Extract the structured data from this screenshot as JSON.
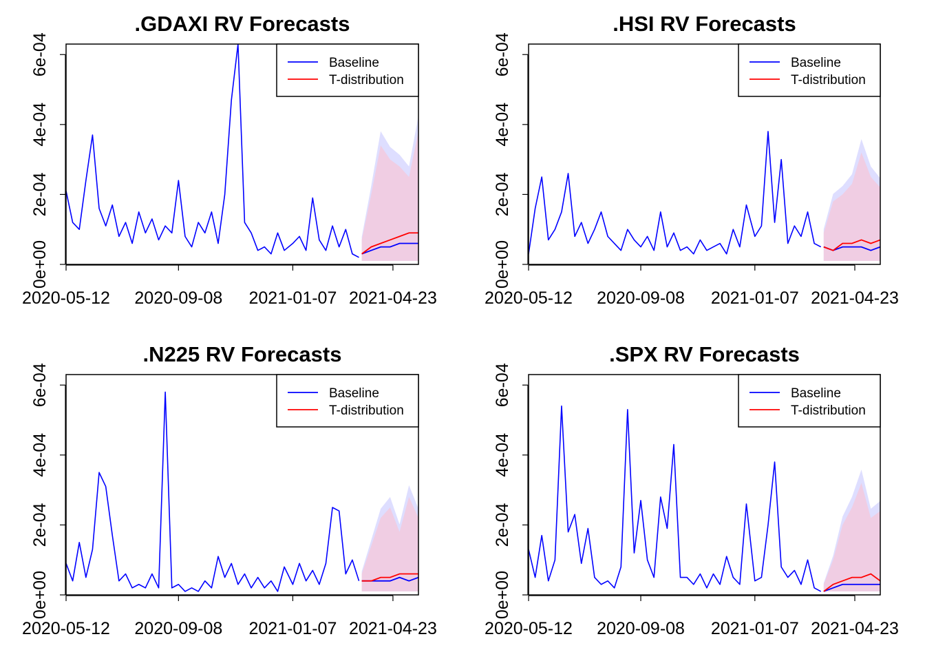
{
  "figure": {
    "x_ticks": [
      "2020-05-12",
      "2020-09-08",
      "2021-01-07",
      "2021-04-23"
    ],
    "y_ticks": [
      "0e+00",
      "2e-04",
      "4e-04",
      "6e-04"
    ],
    "colors": {
      "baseline": "#0000ff",
      "t_distribution": "#ff0000",
      "baseline_band": "#d8d8ff",
      "t_band": "#f4c8dc"
    }
  },
  "chart_data": [
    {
      "type": "line",
      "title": ".GDAXI RV Forecasts",
      "xlabel": "",
      "ylabel": "",
      "xlim": [
        "2020-05-12",
        "2021-05-20"
      ],
      "ylim": [
        0,
        0.00063
      ],
      "x_ticks": [
        "2020-05-12",
        "2020-09-08",
        "2021-01-07",
        "2021-04-23"
      ],
      "y_ticks": [
        0,
        0.0002,
        0.0004,
        0.0006
      ],
      "y_tick_labels": [
        "0e+00",
        "2e-04",
        "4e-04",
        "6e-04"
      ],
      "legend": {
        "position": "top-right",
        "entries": [
          "Baseline",
          "T-distribution"
        ]
      },
      "history": {
        "name": "Baseline",
        "x": [
          "2020-05-12",
          "2020-05-19",
          "2020-05-26",
          "2020-06-02",
          "2020-06-09",
          "2020-06-16",
          "2020-06-23",
          "2020-06-30",
          "2020-07-07",
          "2020-07-14",
          "2020-07-21",
          "2020-07-28",
          "2020-08-04",
          "2020-08-11",
          "2020-08-18",
          "2020-08-25",
          "2020-09-01",
          "2020-09-08",
          "2020-09-15",
          "2020-09-22",
          "2020-09-29",
          "2020-10-06",
          "2020-10-13",
          "2020-10-20",
          "2020-10-27",
          "2020-11-03",
          "2020-11-10",
          "2020-11-17",
          "2020-11-24",
          "2020-12-01",
          "2020-12-08",
          "2020-12-15",
          "2020-12-22",
          "2020-12-29",
          "2021-01-07",
          "2021-01-14",
          "2021-01-21",
          "2021-01-28",
          "2021-02-04",
          "2021-02-11",
          "2021-02-18",
          "2021-02-25",
          "2021-03-04",
          "2021-03-11",
          "2021-03-18"
        ],
        "values": [
          0.00021,
          0.00012,
          0.0001,
          0.00024,
          0.00037,
          0.00016,
          0.00011,
          0.00017,
          8e-05,
          0.00012,
          6e-05,
          0.00015,
          9e-05,
          0.00013,
          7e-05,
          0.00011,
          9e-05,
          0.00024,
          8e-05,
          5e-05,
          0.00012,
          9e-05,
          0.00015,
          6e-05,
          0.0002,
          0.00047,
          0.00063,
          0.00012,
          9e-05,
          4e-05,
          5e-05,
          3e-05,
          9e-05,
          4e-05,
          6e-05,
          8e-05,
          4e-05,
          0.00019,
          7e-05,
          4e-05,
          0.00011,
          5e-05,
          0.0001,
          3e-05,
          2e-05
        ]
      },
      "forecast": {
        "x": [
          "2021-03-21",
          "2021-03-31",
          "2021-04-10",
          "2021-04-20",
          "2021-04-30",
          "2021-05-10",
          "2021-05-20"
        ],
        "series": [
          {
            "name": "Baseline",
            "values": [
              3e-05,
              4e-05,
              5e-05,
              5e-05,
              6e-05,
              6e-05,
              6e-05
            ]
          },
          {
            "name": "T-distribution",
            "values": [
              3e-05,
              5e-05,
              6e-05,
              7e-05,
              8e-05,
              9e-05,
              9e-05
            ]
          }
        ],
        "interval_upper": [
          7e-05,
          0.0002,
          0.00034,
          0.0003,
          0.00028,
          0.00025,
          0.00038
        ],
        "interval_lower": [
          1e-05,
          1e-05,
          1e-05,
          1e-05,
          1e-05,
          1e-05,
          1e-05
        ]
      }
    },
    {
      "type": "line",
      "title": ".HSI RV Forecasts",
      "xlabel": "",
      "ylabel": "",
      "xlim": [
        "2020-05-12",
        "2021-05-20"
      ],
      "ylim": [
        0,
        0.00063
      ],
      "x_ticks": [
        "2020-05-12",
        "2020-09-08",
        "2021-01-07",
        "2021-04-23"
      ],
      "y_ticks": [
        0,
        0.0002,
        0.0004,
        0.0006
      ],
      "y_tick_labels": [
        "0e+00",
        "2e-04",
        "4e-04",
        "6e-04"
      ],
      "legend": {
        "position": "top-right",
        "entries": [
          "Baseline",
          "T-distribution"
        ]
      },
      "history": {
        "name": "Baseline",
        "x": [
          "2020-05-12",
          "2020-05-19",
          "2020-05-26",
          "2020-06-02",
          "2020-06-09",
          "2020-06-16",
          "2020-06-23",
          "2020-06-30",
          "2020-07-07",
          "2020-07-14",
          "2020-07-21",
          "2020-07-28",
          "2020-08-04",
          "2020-08-11",
          "2020-08-18",
          "2020-08-25",
          "2020-09-01",
          "2020-09-08",
          "2020-09-15",
          "2020-09-22",
          "2020-09-29",
          "2020-10-06",
          "2020-10-13",
          "2020-10-20",
          "2020-10-27",
          "2020-11-03",
          "2020-11-10",
          "2020-11-17",
          "2020-11-24",
          "2020-12-01",
          "2020-12-08",
          "2020-12-15",
          "2020-12-22",
          "2020-12-29",
          "2021-01-07",
          "2021-01-14",
          "2021-01-21",
          "2021-01-28",
          "2021-02-04",
          "2021-02-11",
          "2021-02-18",
          "2021-02-25",
          "2021-03-04",
          "2021-03-11",
          "2021-03-18"
        ],
        "values": [
          3e-05,
          0.00016,
          0.00025,
          7e-05,
          0.0001,
          0.00015,
          0.00026,
          8e-05,
          0.00012,
          6e-05,
          0.0001,
          0.00015,
          8e-05,
          6e-05,
          4e-05,
          0.0001,
          7e-05,
          5e-05,
          8e-05,
          4e-05,
          0.00015,
          5e-05,
          9e-05,
          4e-05,
          5e-05,
          3e-05,
          7e-05,
          4e-05,
          5e-05,
          6e-05,
          3e-05,
          0.0001,
          5e-05,
          0.00017,
          8e-05,
          0.00011,
          0.00038,
          0.00012,
          0.0003,
          6e-05,
          0.00011,
          8e-05,
          0.00015,
          6e-05,
          5e-05
        ]
      },
      "forecast": {
        "x": [
          "2021-03-21",
          "2021-03-31",
          "2021-04-10",
          "2021-04-20",
          "2021-04-30",
          "2021-05-10",
          "2021-05-20"
        ],
        "series": [
          {
            "name": "Baseline",
            "values": [
              5e-05,
              4e-05,
              5e-05,
              5e-05,
              5e-05,
              4e-05,
              5e-05
            ]
          },
          {
            "name": "T-distribution",
            "values": [
              5e-05,
              4e-05,
              6e-05,
              6e-05,
              7e-05,
              6e-05,
              7e-05
            ]
          }
        ],
        "interval_upper": [
          9e-05,
          0.00018,
          0.0002,
          0.00023,
          0.00032,
          0.00025,
          0.00022
        ],
        "interval_lower": [
          1e-05,
          1e-05,
          1e-05,
          1e-05,
          1e-05,
          1e-05,
          1e-05
        ]
      }
    },
    {
      "type": "line",
      "title": ".N225 RV Forecasts",
      "xlabel": "",
      "ylabel": "",
      "xlim": [
        "2020-05-12",
        "2021-05-20"
      ],
      "ylim": [
        0,
        0.00063
      ],
      "x_ticks": [
        "2020-05-12",
        "2020-09-08",
        "2021-01-07",
        "2021-04-23"
      ],
      "y_ticks": [
        0,
        0.0002,
        0.0004,
        0.0006
      ],
      "y_tick_labels": [
        "0e+00",
        "2e-04",
        "4e-04",
        "6e-04"
      ],
      "legend": {
        "position": "top-right",
        "entries": [
          "Baseline",
          "T-distribution"
        ]
      },
      "history": {
        "name": "Baseline",
        "x": [
          "2020-05-12",
          "2020-05-19",
          "2020-05-26",
          "2020-06-02",
          "2020-06-09",
          "2020-06-16",
          "2020-06-23",
          "2020-06-30",
          "2020-07-07",
          "2020-07-14",
          "2020-07-21",
          "2020-07-28",
          "2020-08-04",
          "2020-08-11",
          "2020-08-18",
          "2020-08-25",
          "2020-09-01",
          "2020-09-08",
          "2020-09-15",
          "2020-09-22",
          "2020-09-29",
          "2020-10-06",
          "2020-10-13",
          "2020-10-20",
          "2020-10-27",
          "2020-11-03",
          "2020-11-10",
          "2020-11-17",
          "2020-11-24",
          "2020-12-01",
          "2020-12-08",
          "2020-12-15",
          "2020-12-22",
          "2020-12-29",
          "2021-01-07",
          "2021-01-14",
          "2021-01-21",
          "2021-01-28",
          "2021-02-04",
          "2021-02-11",
          "2021-02-18",
          "2021-02-25",
          "2021-03-04",
          "2021-03-11",
          "2021-03-18"
        ],
        "values": [
          9e-05,
          4e-05,
          0.00015,
          5e-05,
          0.00013,
          0.00035,
          0.00031,
          0.00017,
          4e-05,
          6e-05,
          2e-05,
          3e-05,
          2e-05,
          6e-05,
          2e-05,
          0.00058,
          2e-05,
          3e-05,
          1e-05,
          2e-05,
          1e-05,
          4e-05,
          2e-05,
          0.00011,
          5e-05,
          9e-05,
          3e-05,
          6e-05,
          2e-05,
          5e-05,
          2e-05,
          4e-05,
          1e-05,
          8e-05,
          3e-05,
          9e-05,
          4e-05,
          7e-05,
          3e-05,
          9e-05,
          0.00025,
          0.00024,
          6e-05,
          0.0001,
          4e-05
        ]
      },
      "forecast": {
        "x": [
          "2021-03-21",
          "2021-03-31",
          "2021-04-10",
          "2021-04-20",
          "2021-04-30",
          "2021-05-10",
          "2021-05-20"
        ],
        "series": [
          {
            "name": "Baseline",
            "values": [
              4e-05,
              4e-05,
              4e-05,
              4e-05,
              5e-05,
              4e-05,
              5e-05
            ]
          },
          {
            "name": "T-distribution",
            "values": [
              4e-05,
              4e-05,
              5e-05,
              5e-05,
              6e-05,
              6e-05,
              6e-05
            ]
          }
        ],
        "interval_upper": [
          6e-05,
          0.00014,
          0.00022,
          0.00025,
          0.00018,
          0.00028,
          0.00022
        ],
        "interval_lower": [
          1e-05,
          1e-05,
          1e-05,
          1e-05,
          1e-05,
          1e-05,
          1e-05
        ]
      }
    },
    {
      "type": "line",
      "title": ".SPX RV Forecasts",
      "xlabel": "",
      "ylabel": "",
      "xlim": [
        "2020-05-12",
        "2021-05-20"
      ],
      "ylim": [
        0,
        0.00063
      ],
      "x_ticks": [
        "2020-05-12",
        "2020-09-08",
        "2021-01-07",
        "2021-04-23"
      ],
      "y_ticks": [
        0,
        0.0002,
        0.0004,
        0.0006
      ],
      "y_tick_labels": [
        "0e+00",
        "2e-04",
        "4e-04",
        "6e-04"
      ],
      "legend": {
        "position": "top-right",
        "entries": [
          "Baseline",
          "T-distribution"
        ]
      },
      "history": {
        "name": "Baseline",
        "x": [
          "2020-05-12",
          "2020-05-19",
          "2020-05-26",
          "2020-06-02",
          "2020-06-09",
          "2020-06-16",
          "2020-06-23",
          "2020-06-30",
          "2020-07-07",
          "2020-07-14",
          "2020-07-21",
          "2020-07-28",
          "2020-08-04",
          "2020-08-11",
          "2020-08-18",
          "2020-08-25",
          "2020-09-01",
          "2020-09-08",
          "2020-09-15",
          "2020-09-22",
          "2020-09-29",
          "2020-10-06",
          "2020-10-13",
          "2020-10-20",
          "2020-10-27",
          "2020-11-03",
          "2020-11-10",
          "2020-11-17",
          "2020-11-24",
          "2020-12-01",
          "2020-12-08",
          "2020-12-15",
          "2020-12-22",
          "2020-12-29",
          "2021-01-07",
          "2021-01-14",
          "2021-01-21",
          "2021-01-28",
          "2021-02-04",
          "2021-02-11",
          "2021-02-18",
          "2021-02-25",
          "2021-03-04",
          "2021-03-11",
          "2021-03-18"
        ],
        "values": [
          0.00013,
          5e-05,
          0.00017,
          4e-05,
          0.0001,
          0.00054,
          0.00018,
          0.00023,
          9e-05,
          0.00019,
          5e-05,
          3e-05,
          4e-05,
          2e-05,
          8e-05,
          0.00053,
          0.00012,
          0.00027,
          0.0001,
          5e-05,
          0.00028,
          0.00019,
          0.00043,
          5e-05,
          5e-05,
          3e-05,
          6e-05,
          2e-05,
          6e-05,
          3e-05,
          0.00011,
          5e-05,
          3e-05,
          0.00026,
          4e-05,
          5e-05,
          0.0002,
          0.00038,
          8e-05,
          5e-05,
          7e-05,
          3e-05,
          0.0001,
          2e-05,
          1e-05
        ]
      },
      "forecast": {
        "x": [
          "2021-03-21",
          "2021-03-31",
          "2021-04-10",
          "2021-04-20",
          "2021-04-30",
          "2021-05-10",
          "2021-05-20"
        ],
        "series": [
          {
            "name": "Baseline",
            "values": [
              1e-05,
              2e-05,
              3e-05,
              3e-05,
              3e-05,
              3e-05,
              3e-05
            ]
          },
          {
            "name": "T-distribution",
            "values": [
              1e-05,
              3e-05,
              4e-05,
              5e-05,
              5e-05,
              6e-05,
              4e-05
            ]
          }
        ],
        "interval_upper": [
          3e-05,
          0.0001,
          0.0002,
          0.00025,
          0.00032,
          0.00022,
          0.00024
        ],
        "interval_lower": [
          1e-05,
          1e-05,
          1e-05,
          1e-05,
          1e-05,
          1e-05,
          1e-05
        ]
      }
    }
  ]
}
